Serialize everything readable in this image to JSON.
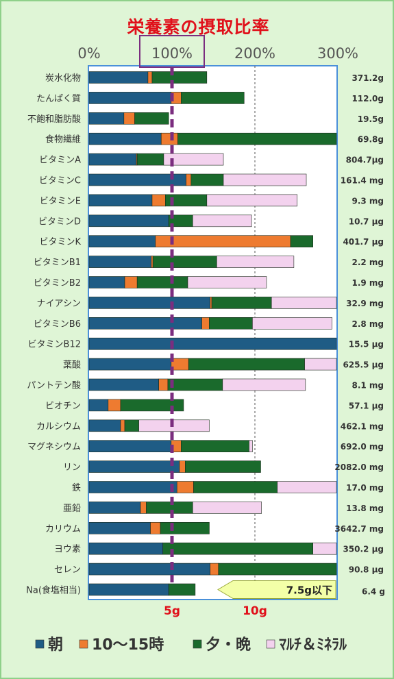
{
  "chart_data": {
    "type": "bar",
    "stacked": true,
    "orientation": "horizontal",
    "title": "栄養素の摂取比率",
    "x_ticks": [
      "0%",
      "100%",
      "200%",
      "300%"
    ],
    "xlim": [
      0,
      300
    ],
    "reference_line": 100,
    "bottom_ticks": [
      {
        "label": "5g",
        "at": 100
      },
      {
        "label": "10g",
        "at": 200
      }
    ],
    "categories": [
      "炭水化物",
      "たんぱく質",
      "不飽和脂肪酸",
      "食物繊維",
      "ビタミンA",
      "ビタミンC",
      "ビタミンE",
      "ビタミンD",
      "ビタミンK",
      "ビタミンB1",
      "ビタミンB2",
      "ナイアシン",
      "ビタミンB6",
      "ビタミンB12",
      "葉酸",
      "パントテン酸",
      "ビオチン",
      "カルシウム",
      "マグネシウム",
      "リン",
      "鉄",
      "亜鉛",
      "カリウム",
      "ヨウ素",
      "セレン",
      "Na(食塩相当)"
    ],
    "amounts": [
      "371.2g",
      "112.0g",
      "19.5g",
      "69.8g",
      "804.7μg",
      "161.4 mg",
      "9.3 mg",
      "10.7 μg",
      "401.7 μg",
      "2.2 mg",
      "1.9 mg",
      "32.9 mg",
      "2.8 mg",
      "15.5 μg",
      "625.5 μg",
      "8.1 mg",
      "57.1 μg",
      "462.1 mg",
      "692.0 mg",
      "2082.0 mg",
      "17.0 mg",
      "13.8 mg",
      "3642.7 mg",
      "350.2 μg",
      "90.8 μg",
      "6.4 g"
    ],
    "series": [
      {
        "name": "朝",
        "color": "#1f5c85",
        "values": [
          71,
          99,
          42,
          87,
          57,
          117,
          76,
          96,
          80,
          75,
          43,
          146,
          136,
          300,
          99,
          84,
          23,
          38,
          99,
          109,
          106,
          62,
          74,
          89,
          146,
          96
        ]
      },
      {
        "name": "10〜15時",
        "color": "#ee7b30",
        "values": [
          5,
          12,
          13,
          20,
          1,
          6,
          16,
          0,
          163,
          2,
          15,
          2,
          9,
          0,
          21,
          11,
          15,
          5,
          12,
          7,
          20,
          7,
          12,
          0,
          10,
          0
        ]
      },
      {
        "name": "夕・晩",
        "color": "#1a6a2c",
        "values": [
          66,
          76,
          41,
          195,
          32,
          39,
          50,
          29,
          27,
          77,
          61,
          72,
          52,
          0,
          140,
          66,
          76,
          17,
          82,
          91,
          101,
          56,
          59,
          181,
          147,
          32
        ]
      },
      {
        "name": "マルチ＆ミネラル",
        "color": "#f3d2ee",
        "values": [
          0,
          0,
          0,
          0,
          72,
          100,
          109,
          71,
          0,
          93,
          95,
          80,
          96,
          0,
          41,
          100,
          0,
          85,
          4,
          0,
          73,
          83,
          0,
          32,
          0,
          0
        ]
      }
    ],
    "annotation": "7.5g以下",
    "annotation_row": "Na(食塩相当)"
  },
  "legend": [
    {
      "label": "朝",
      "color": "#1f5c85"
    },
    {
      "label": "10〜15時",
      "color": "#ee7b30"
    },
    {
      "label": "夕・晩",
      "color": "#1a6a2c"
    },
    {
      "label": "ﾏﾙﾁ＆ﾐﾈﾗﾙ",
      "color": "#f3d2ee"
    }
  ],
  "colors": {
    "title": "#e0101a",
    "reference_line": "#7b2d7f",
    "plot_border": "#4a90d9",
    "background": "#dff5d6",
    "annotation_fill": "#f3ffa8"
  }
}
